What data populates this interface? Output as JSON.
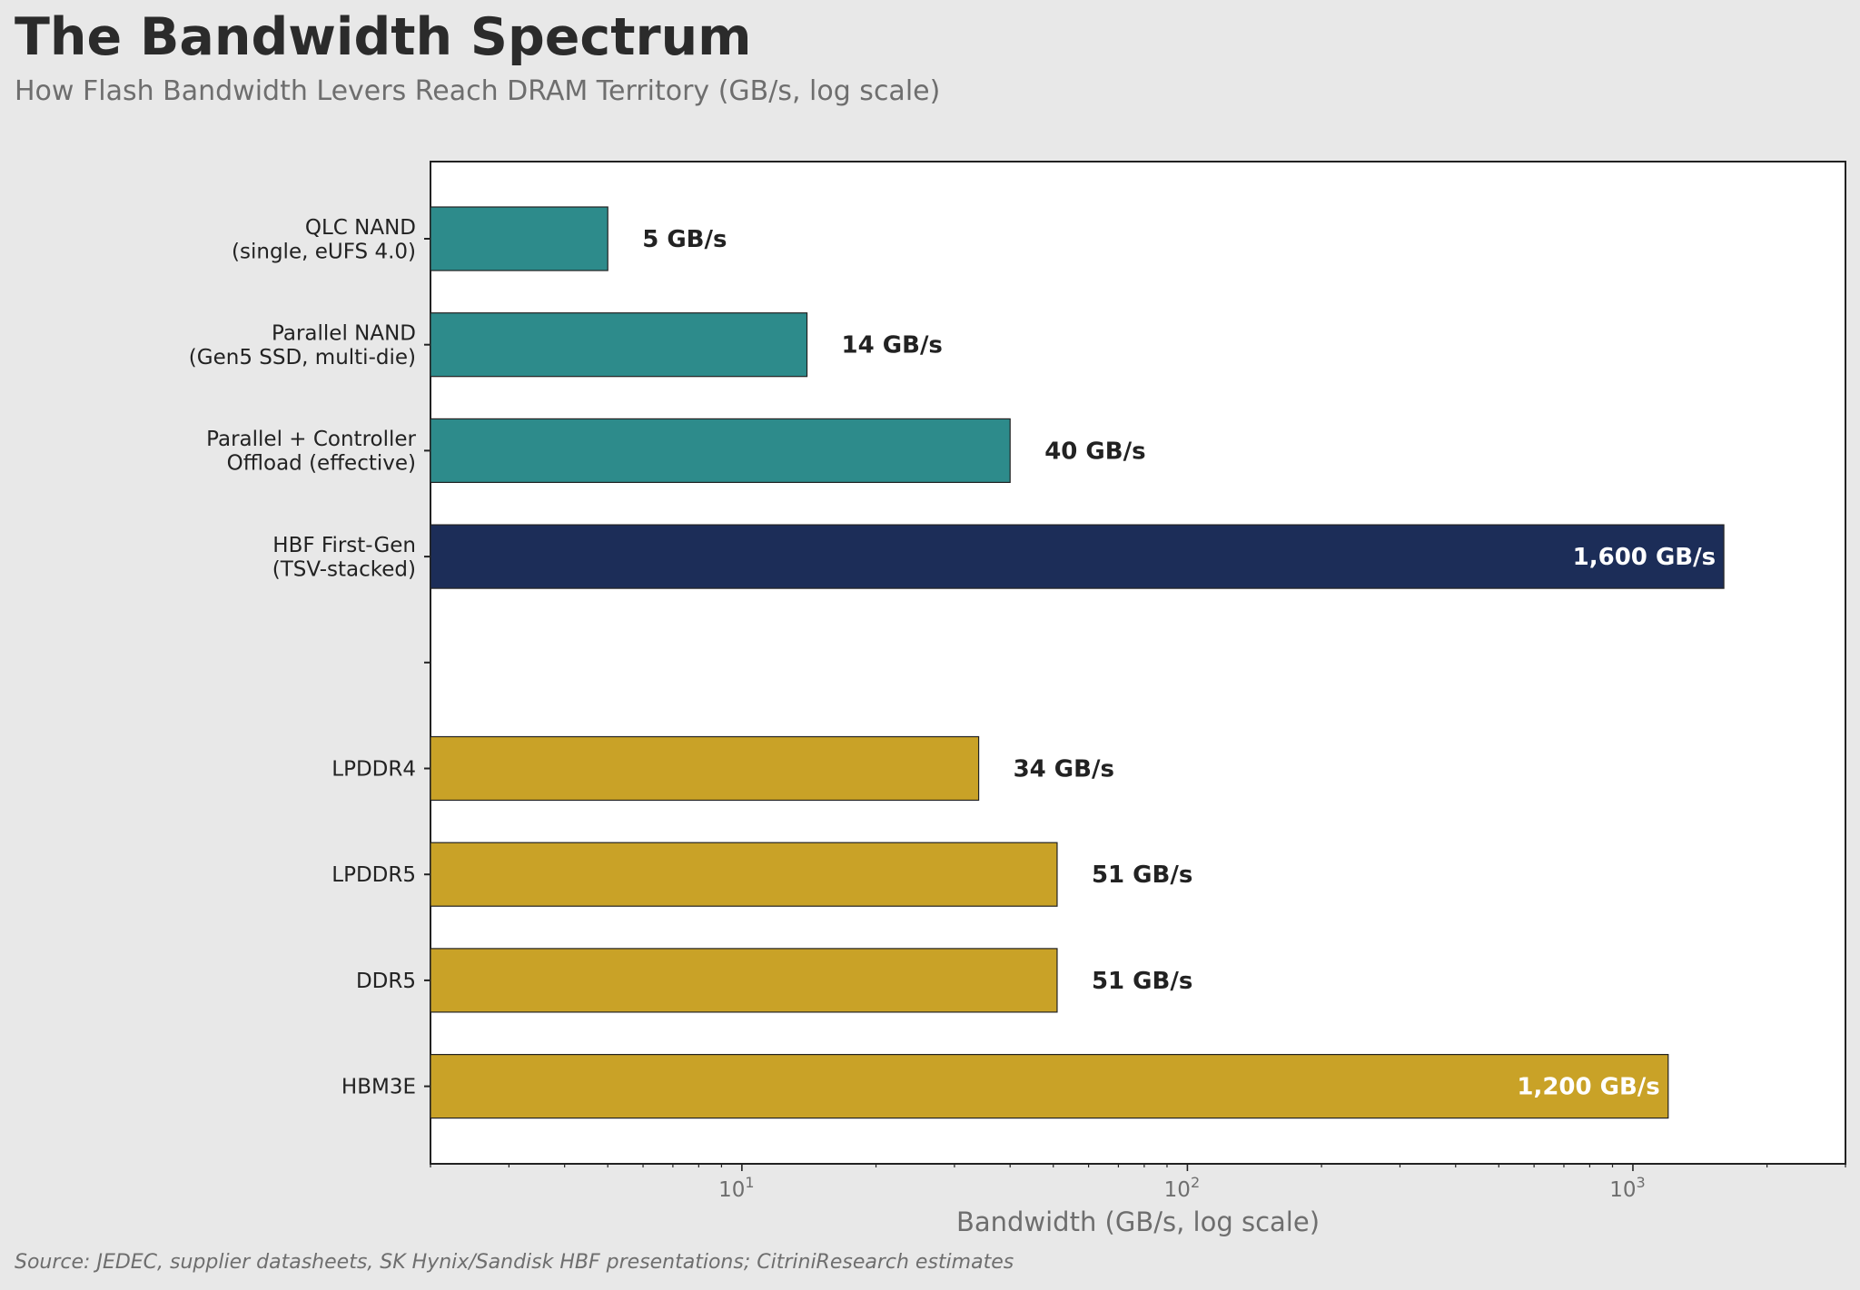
{
  "title": "The Bandwidth Spectrum",
  "subtitle": "How Flash Bandwidth Levers Reach DRAM Territory (GB/s, log scale)",
  "source": "Source: JEDEC, supplier datasheets, SK Hynix/Sandisk HBF presentations; CitriniResearch estimates",
  "colors": {
    "flash": "#2d8b8b",
    "hbf": "#1c2d58",
    "dram": "#c9a227",
    "background": "#e8e8e8",
    "plot_background": "#ffffff"
  },
  "chart_data": {
    "type": "bar",
    "orientation": "horizontal",
    "xscale": "log",
    "xlabel": "Bandwidth (GB/s, log scale)",
    "xlim": [
      2,
      3000
    ],
    "xticks": [
      {
        "value": 10,
        "label": "10",
        "exp": "1"
      },
      {
        "value": 100,
        "label": "10",
        "exp": "2"
      },
      {
        "value": 1000,
        "label": "10",
        "exp": "3"
      }
    ],
    "grid": false,
    "bars": [
      {
        "label": [
          "QLC NAND",
          "(single, eUFS 4.0)"
        ],
        "value": 5,
        "value_label": "5 GB/s",
        "group": "flash",
        "label_inside": false
      },
      {
        "label": [
          "Parallel NAND",
          "(Gen5 SSD, multi-die)"
        ],
        "value": 14,
        "value_label": "14 GB/s",
        "group": "flash",
        "label_inside": false
      },
      {
        "label": [
          "Parallel + Controller",
          "Offload (effective)"
        ],
        "value": 40,
        "value_label": "40 GB/s",
        "group": "flash",
        "label_inside": false
      },
      {
        "label": [
          "HBF First-Gen",
          "(TSV-stacked)"
        ],
        "value": 1600,
        "value_label": "1,600 GB/s",
        "group": "hbf",
        "label_inside": true
      },
      {
        "label": [
          ""
        ],
        "value": null,
        "value_label": "",
        "group": "spacer",
        "label_inside": false
      },
      {
        "label": [
          "LPDDR4"
        ],
        "value": 34,
        "value_label": "34 GB/s",
        "group": "dram",
        "label_inside": false
      },
      {
        "label": [
          "LPDDR5"
        ],
        "value": 51,
        "value_label": "51 GB/s",
        "group": "dram",
        "label_inside": false
      },
      {
        "label": [
          "DDR5"
        ],
        "value": 51,
        "value_label": "51 GB/s",
        "group": "dram",
        "label_inside": false
      },
      {
        "label": [
          "HBM3E"
        ],
        "value": 1200,
        "value_label": "1,200 GB/s",
        "group": "dram",
        "label_inside": true
      }
    ]
  }
}
